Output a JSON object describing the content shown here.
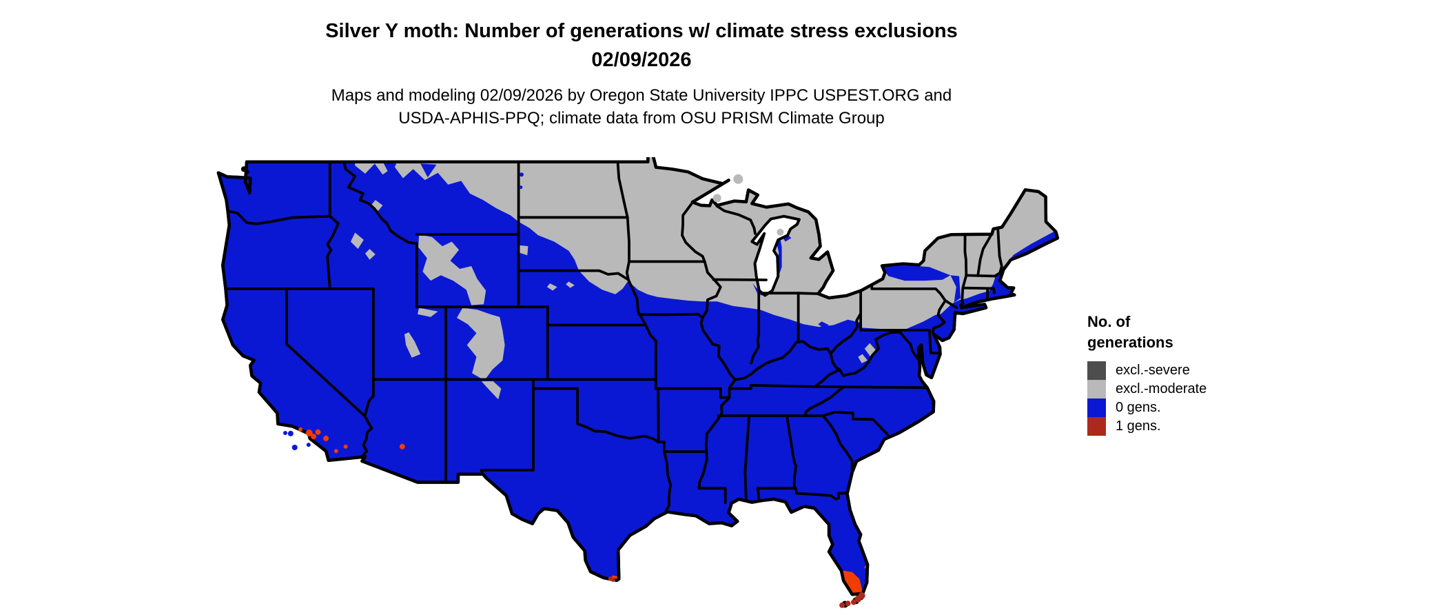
{
  "title": {
    "line1": "Silver Y moth: Number of generations w/ climate stress exclusions",
    "line2": "02/09/2026"
  },
  "subtitle": {
    "line1": "Maps and modeling 02/09/2026 by Oregon State University IPPC USPEST.ORG and",
    "line2": "USDA-APHIS-PPQ; climate data from OSU PRISM Climate Group"
  },
  "legend": {
    "title_line1": "No. of",
    "title_line2": "generations",
    "items": [
      {
        "label": "excl.-severe",
        "color": "#4d4d4d"
      },
      {
        "label": "excl.-moderate",
        "color": "#b9b9b9"
      },
      {
        "label": "0 gens.",
        "color": "#0a18d4"
      },
      {
        "label": "1 gens.",
        "color": "#ac2a1b"
      }
    ]
  },
  "map": {
    "colors": {
      "background": "#ffffff",
      "state_border": "#000000",
      "excl_severe": "#4d4d4d",
      "excl_moderate": "#b9b9b9",
      "zero_gens": "#0a18d4",
      "one_gen_hot": "#f23d00",
      "one_gen_dark": "#ac2a1b",
      "lake": "#ffffff"
    }
  }
}
